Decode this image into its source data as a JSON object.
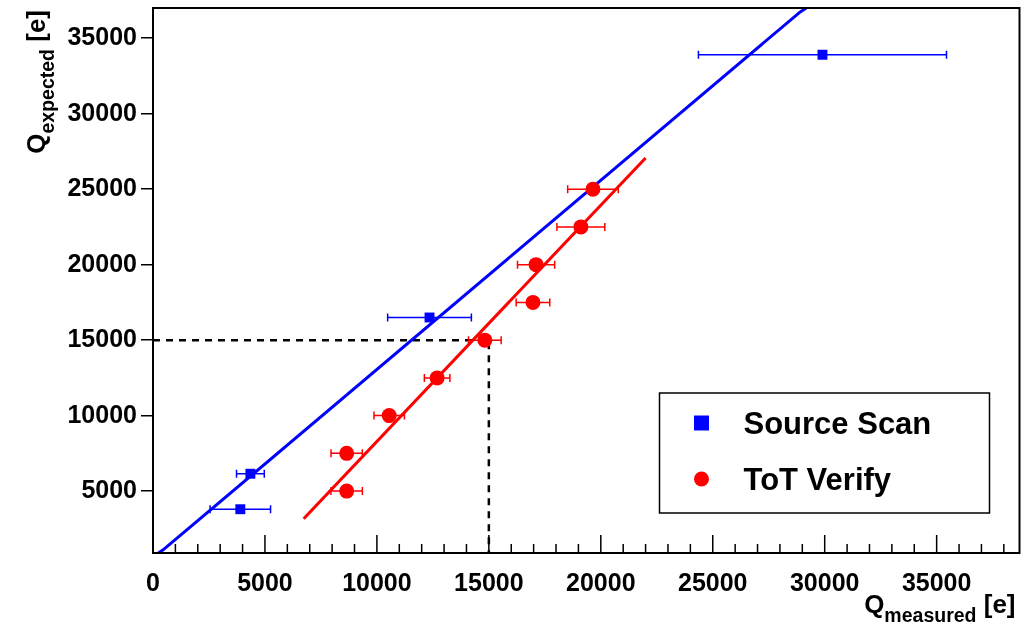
{
  "chart_data": {
    "type": "scatter",
    "xlabel": "Q$_{measured}$ [e]",
    "ylabel": "Q$_{expected}$ [e]",
    "xlim": [
      0,
      38700
    ],
    "ylim": [
      900,
      37000
    ],
    "xticks": [
      0,
      5000,
      10000,
      15000,
      20000,
      25000,
      30000,
      35000
    ],
    "yticks": [
      5000,
      10000,
      15000,
      20000,
      25000,
      30000,
      35000
    ],
    "legend": "bottom right",
    "series": [
      {
        "name": "Source Scan",
        "type": "scatter",
        "marker": "square",
        "color": "#0000ff",
        "x": [
          3900,
          4350,
          12350,
          29900
        ],
        "values": [
          3800,
          6150,
          16500,
          33900
        ],
        "xerrors": [
          1350,
          620,
          1870,
          5540
        ]
      },
      {
        "name": "ToT Verify",
        "type": "scatter",
        "marker": "circle",
        "color": "#ff0000",
        "x": [
          8650,
          8650,
          10550,
          12690,
          14820,
          16970,
          17110,
          19110,
          19650
        ],
        "values": [
          5000,
          7500,
          10000,
          12500,
          15000,
          17500,
          20000,
          22500,
          25000
        ],
        "xerrors": [
          700,
          700,
          680,
          570,
          730,
          750,
          830,
          1070,
          1130
        ]
      },
      {
        "type": "line",
        "color": "#0000ff",
        "x": [
          240,
          490,
          28870,
          29180
        ],
        "values": [
          900,
          1150,
          36700,
          37000
        ]
      },
      {
        "type": "line",
        "color": "#ff0000",
        "x": [
          6730,
          22000
        ],
        "values": [
          3170,
          27070
        ]
      },
      {
        "type": "line",
        "color": "#000000",
        "line_style": "dashed",
        "x": [
          0,
          15000,
          15000
        ],
        "values": [
          15000,
          15000,
          900
        ]
      }
    ]
  }
}
